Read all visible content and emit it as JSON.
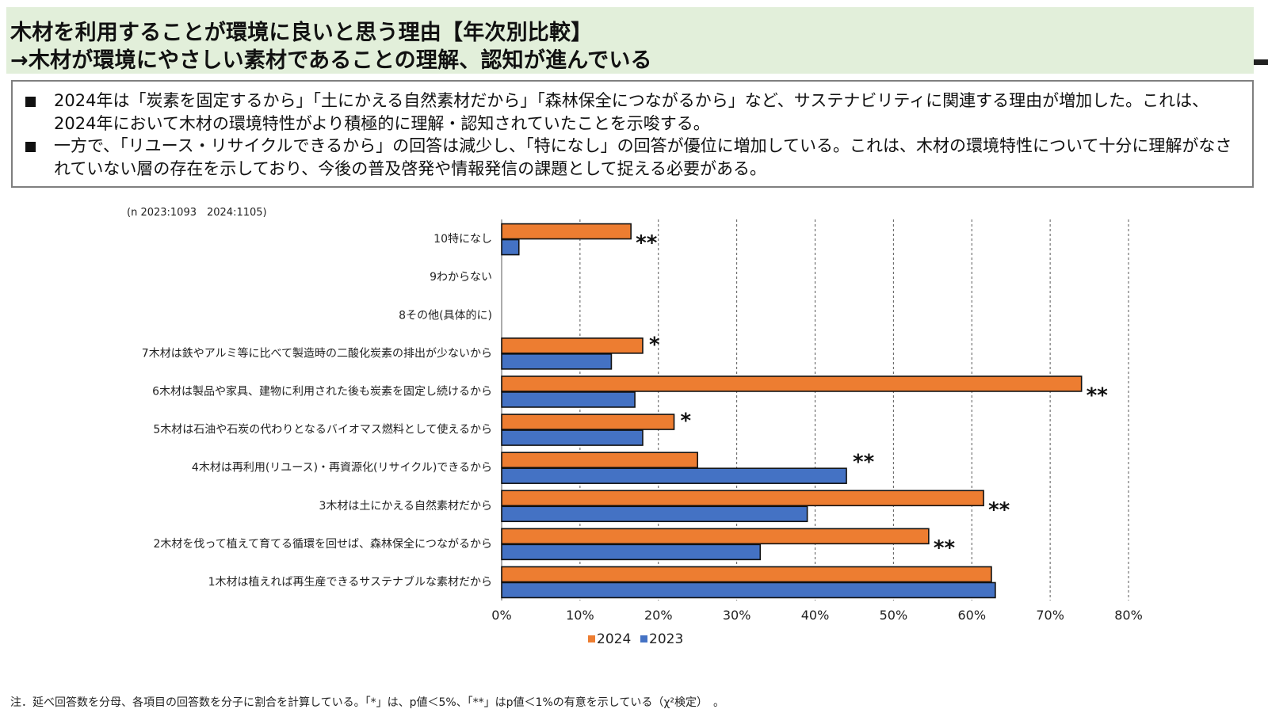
{
  "header": {
    "title_line1": "木材を利用することが環境に良いと思う理由【年次別比較】",
    "title_line2": "→木材が環境にやさしい素材であることの理解、認知が進んでいる"
  },
  "summary": {
    "bullets": [
      "2024年は「炭素を固定するから」「土にかえる自然素材だから」「森林保全につながるから」など、サステナビリティに関連する理由が増加した。これは、2024年において木材の環境特性がより積極的に理解・認知されていたことを示唆する。",
      "一方で、「リユース・リサイクルできるから」の回答は減少し、「特になし」の回答が優位に増加している。これは、木材の環境特性について十分に理解がなされていない層の存在を示しており、今後の普及啓発や情報発信の課題として捉える必要がある。"
    ]
  },
  "footnote": "注．延べ回答数を分母、各項目の回答数を分子に割合を計算している。「*」は、p値＜5%、「**」はp値＜1%の有意を示している（χ²検定）　。",
  "colors": {
    "series_2024": "#ed7d31",
    "series_2023": "#4472c4",
    "title_band": "#e2efda",
    "box_border": "#7f7f7f"
  },
  "chart_data": {
    "type": "bar",
    "orientation": "horizontal",
    "sample_note": "(n 2023:1093　2024:1105)",
    "categories": [
      "10特になし",
      "9わからない",
      "8その他(具体的に)",
      "7木材は鉄やアルミ等に比べて製造時の二酸化炭素の排出が少ないから",
      "6木材は製品や家具、建物に利用された後も炭素を固定し続けるから",
      "5木材は石油や石炭の代わりとなるバイオマス燃料として使えるから",
      "4木材は再利用(リユース)・再資源化(リサイクル)できるから",
      "3木材は土にかえる自然素材だから",
      "2木材を伐って植えて育てる循環を回せば、森林保全につながるから",
      "1木材は植えれば再生産できるサステナブルな素材だから"
    ],
    "series": [
      {
        "name": "2024",
        "values": [
          16.5,
          0,
          0,
          18.0,
          74.0,
          22.0,
          25.0,
          61.5,
          54.5,
          62.5
        ]
      },
      {
        "name": "2023",
        "values": [
          2.2,
          0,
          0,
          14.0,
          17.0,
          18.0,
          44.0,
          39.0,
          33.0,
          63.0
        ]
      }
    ],
    "significance": [
      "**",
      "",
      "",
      "*",
      "**",
      "*",
      "**",
      "**",
      "**",
      ""
    ],
    "x_ticks": [
      "0%",
      "10%",
      "20%",
      "30%",
      "40%",
      "50%",
      "60%",
      "70%",
      "80%"
    ],
    "xlim": [
      0,
      80
    ],
    "grid": "vertical dashed",
    "legend": [
      "2024",
      "2023"
    ],
    "legend_placement": "bottom-center"
  }
}
